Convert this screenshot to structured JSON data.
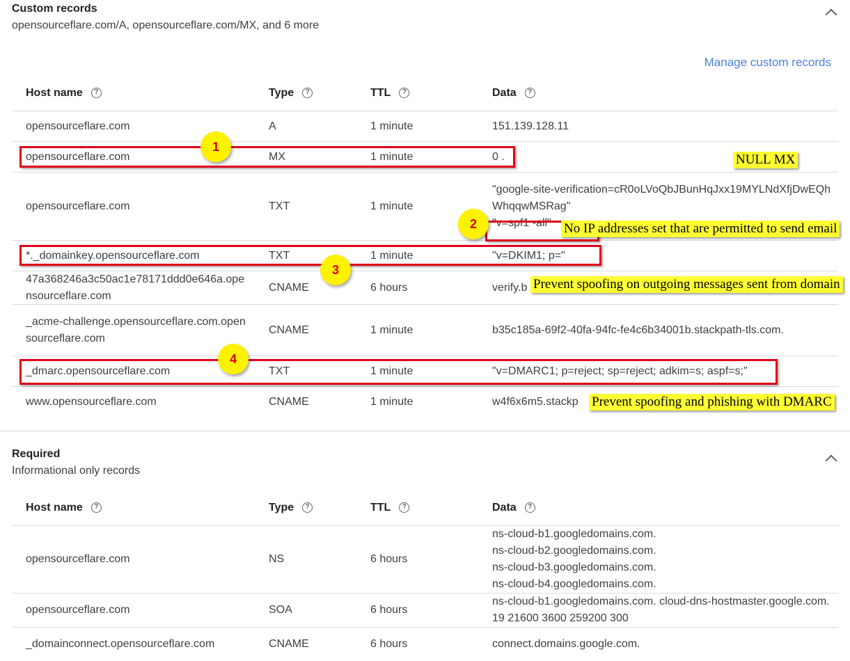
{
  "custom": {
    "title": "Custom records",
    "subtitle": "opensourceflare.com/A, opensourceflare.com/MX, and 6 more",
    "manage": "Manage custom records",
    "headers": [
      "Host name",
      "Type",
      "TTL",
      "Data"
    ],
    "rows": [
      {
        "host": "opensourceflare.com",
        "type": "A",
        "ttl": "1 minute",
        "data": "151.139.128.11"
      },
      {
        "host": "opensourceflare.com",
        "type": "MX",
        "ttl": "1 minute",
        "data": "0 ."
      },
      {
        "host": "opensourceflare.com",
        "type": "TXT",
        "ttl": "1 minute",
        "data": "\"google-site-verification=cR0oLVoQbJBunHqJxx19MYLNdXfjDwEQhWhqqwMSRag\"\n\"v=spf1 -all\""
      },
      {
        "host": "*._domainkey.opensourceflare.com",
        "type": "TXT",
        "ttl": "1 minute",
        "data": "\"v=DKIM1; p=\""
      },
      {
        "host": "47a368246a3c50ac1e78171ddd0e646a.opensourceflare.com",
        "type": "CNAME",
        "ttl": "6 hours",
        "data": "verify.b"
      },
      {
        "host": "_acme-challenge.opensourceflare.com.opensourceflare.com",
        "type": "CNAME",
        "ttl": "1 minute",
        "data": "b35c185a-69f2-40fa-94fc-fe4c6b34001b.stackpath-tls.com."
      },
      {
        "host": "_dmarc.opensourceflare.com",
        "type": "TXT",
        "ttl": "1 minute",
        "data": "\"v=DMARC1; p=reject; sp=reject; adkim=s; aspf=s;\""
      },
      {
        "host": "www.opensourceflare.com",
        "type": "CNAME",
        "ttl": "1 minute",
        "data": "w4f6x6m5.stackp"
      }
    ]
  },
  "required": {
    "title": "Required",
    "subtitle": "Informational only records",
    "headers": [
      "Host name",
      "Type",
      "TTL",
      "Data"
    ],
    "rows": [
      {
        "host": "opensourceflare.com",
        "type": "NS",
        "ttl": "6 hours",
        "data": "ns-cloud-b1.googledomains.com.\nns-cloud-b2.googledomains.com.\nns-cloud-b3.googledomains.com.\nns-cloud-b4.googledomains.com."
      },
      {
        "host": "opensourceflare.com",
        "type": "SOA",
        "ttl": "6 hours",
        "data": "ns-cloud-b1.googledomains.com. cloud-dns-hostmaster.google.com. 19 21600 3600 259200 300"
      },
      {
        "host": "_domainconnect.opensourceflare.com",
        "type": "CNAME",
        "ttl": "6 hours",
        "data": "connect.domains.google.com."
      }
    ]
  },
  "annotations": {
    "badges": [
      "1",
      "2",
      "3",
      "4"
    ],
    "notes": [
      "NULL MX",
      "No IP addresses set that are permitted to send email",
      "Prevent spoofing on outgoing messages sent from domain",
      "Prevent spoofing and phishing with DMARC"
    ]
  }
}
